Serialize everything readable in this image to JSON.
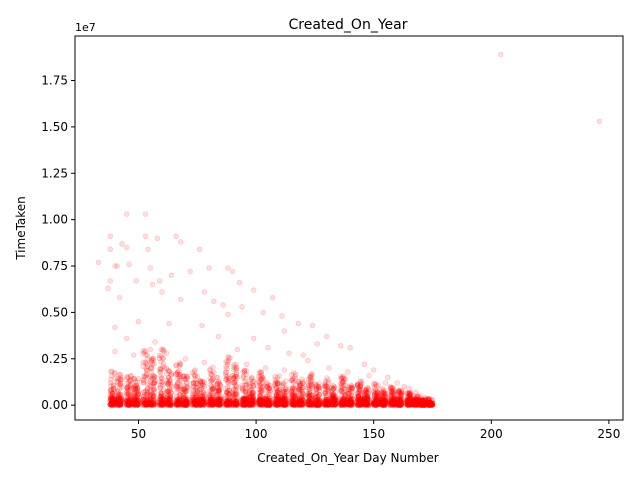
{
  "chart_data": {
    "type": "scatter",
    "title": "Created_On_Year",
    "xlabel": "Created_On_Year Day Number",
    "ylabel": "TimeTaken",
    "y_offset_text": "1e7",
    "xlim": [
      23,
      256
    ],
    "ylim": [
      -800000,
      19900000
    ],
    "xticks": [
      50,
      100,
      150,
      200,
      250
    ],
    "yticks": [
      0,
      2500000,
      5000000,
      7500000,
      10000000,
      12500000,
      15000000,
      17500000
    ],
    "ytick_labels": [
      "0.00",
      "0.25",
      "0.50",
      "0.75",
      "1.00",
      "1.25",
      "1.50",
      "1.75"
    ],
    "grid": false,
    "marker_color": "#ff0000",
    "marker_alpha": 0.12,
    "series": [
      {
        "values_note_free": true,
        "points": [
          [
            204,
            18900000
          ],
          [
            246,
            15300000
          ],
          [
            45,
            10300000
          ],
          [
            53,
            10300000
          ],
          [
            38,
            9100000
          ],
          [
            53,
            9100000
          ],
          [
            66,
            9100000
          ],
          [
            58,
            9000000
          ],
          [
            68,
            8800000
          ],
          [
            43,
            8700000
          ],
          [
            45,
            8500000
          ],
          [
            38,
            8400000
          ],
          [
            76,
            8400000
          ],
          [
            54,
            8400000
          ],
          [
            33,
            7700000
          ],
          [
            46,
            7600000
          ],
          [
            40,
            7500000
          ],
          [
            41,
            7500000
          ],
          [
            55,
            7400000
          ],
          [
            88,
            7400000
          ],
          [
            90,
            7200000
          ],
          [
            80,
            7400000
          ],
          [
            72,
            7200000
          ],
          [
            64,
            7000000
          ],
          [
            38,
            6700000
          ],
          [
            49,
            6700000
          ],
          [
            59,
            6700000
          ],
          [
            93,
            6600000
          ],
          [
            99,
            6200000
          ],
          [
            37,
            6300000
          ],
          [
            56,
            6500000
          ],
          [
            78,
            6100000
          ],
          [
            107,
            5800000
          ],
          [
            82,
            5600000
          ],
          [
            42,
            5800000
          ],
          [
            60,
            6100000
          ],
          [
            68,
            5700000
          ],
          [
            86,
            5400000
          ],
          [
            94,
            5300000
          ],
          [
            103,
            5000000
          ],
          [
            111,
            4800000
          ],
          [
            88,
            4900000
          ],
          [
            50,
            4500000
          ],
          [
            40,
            4200000
          ],
          [
            63,
            4400000
          ],
          [
            77,
            4300000
          ],
          [
            118,
            4400000
          ],
          [
            124,
            4300000
          ],
          [
            112,
            4000000
          ],
          [
            99,
            3600000
          ],
          [
            130,
            3700000
          ],
          [
            136,
            3200000
          ],
          [
            140,
            3100000
          ],
          [
            126,
            3300000
          ],
          [
            45,
            3600000
          ],
          [
            57,
            3400000
          ],
          [
            84,
            3700000
          ],
          [
            92,
            3000000
          ],
          [
            105,
            3100000
          ],
          [
            114,
            2800000
          ],
          [
            120,
            2700000
          ],
          [
            146,
            2200000
          ],
          [
            150,
            1900000
          ],
          [
            156,
            1500000
          ],
          [
            160,
            1200000
          ],
          [
            165,
            900000
          ],
          [
            170,
            500000
          ],
          [
            173,
            300000
          ],
          [
            174,
            100000
          ],
          [
            40,
            2900000
          ],
          [
            48,
            2700000
          ],
          [
            55,
            3000000
          ],
          [
            62,
            2800000
          ],
          [
            70,
            2500000
          ],
          [
            78,
            2300000
          ],
          [
            88,
            2600000
          ],
          [
            96,
            2200000
          ],
          [
            104,
            2000000
          ],
          [
            112,
            1900000
          ],
          [
            122,
            2400000
          ],
          [
            131,
            2000000
          ],
          [
            139,
            1800000
          ],
          [
            148,
            1600000
          ],
          [
            155,
            1200000
          ],
          [
            163,
            1000000
          ],
          [
            168,
            700000
          ],
          [
            172,
            400000
          ]
        ]
      }
    ],
    "dense_bands": [
      {
        "x": 39,
        "ymax": 2000000
      },
      {
        "x": 42,
        "ymax": 1800000
      },
      {
        "x": 46,
        "ymax": 1700000
      },
      {
        "x": 49,
        "ymax": 1500000
      },
      {
        "x": 53,
        "ymax": 3000000
      },
      {
        "x": 56,
        "ymax": 2600000
      },
      {
        "x": 60,
        "ymax": 3100000
      },
      {
        "x": 63,
        "ymax": 2000000
      },
      {
        "x": 67,
        "ymax": 2500000
      },
      {
        "x": 70,
        "ymax": 1600000
      },
      {
        "x": 74,
        "ymax": 1900000
      },
      {
        "x": 77,
        "ymax": 1400000
      },
      {
        "x": 81,
        "ymax": 2100000
      },
      {
        "x": 84,
        "ymax": 1600000
      },
      {
        "x": 88,
        "ymax": 2700000
      },
      {
        "x": 91,
        "ymax": 2200000
      },
      {
        "x": 95,
        "ymax": 1900000
      },
      {
        "x": 98,
        "ymax": 1500000
      },
      {
        "x": 102,
        "ymax": 1800000
      },
      {
        "x": 105,
        "ymax": 1400000
      },
      {
        "x": 109,
        "ymax": 1600000
      },
      {
        "x": 112,
        "ymax": 1300000
      },
      {
        "x": 116,
        "ymax": 1800000
      },
      {
        "x": 119,
        "ymax": 1400000
      },
      {
        "x": 123,
        "ymax": 1700000
      },
      {
        "x": 126,
        "ymax": 1200000
      },
      {
        "x": 130,
        "ymax": 1500000
      },
      {
        "x": 133,
        "ymax": 1100000
      },
      {
        "x": 137,
        "ymax": 1600000
      },
      {
        "x": 140,
        "ymax": 1100000
      },
      {
        "x": 144,
        "ymax": 1300000
      },
      {
        "x": 147,
        "ymax": 1000000
      },
      {
        "x": 151,
        "ymax": 1200000
      },
      {
        "x": 154,
        "ymax": 900000
      },
      {
        "x": 158,
        "ymax": 1000000
      },
      {
        "x": 161,
        "ymax": 800000
      },
      {
        "x": 165,
        "ymax": 700000
      },
      {
        "x": 168,
        "ymax": 500000
      },
      {
        "x": 171,
        "ymax": 300000
      },
      {
        "x": 174,
        "ymax": 150000
      }
    ]
  }
}
